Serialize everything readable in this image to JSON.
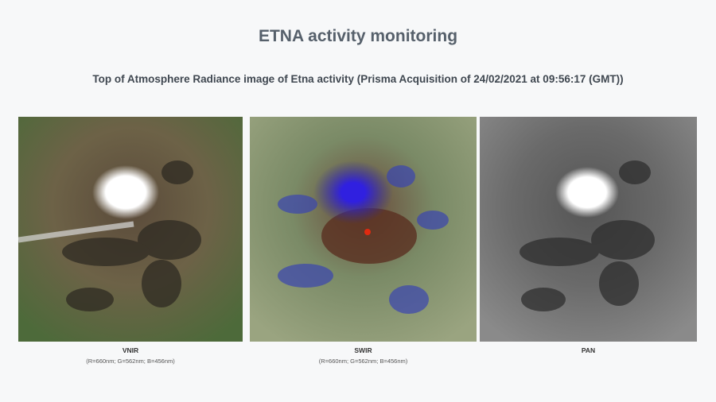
{
  "header": {
    "title": "ETNA activity monitoring",
    "subtitle": "Top of Atmosphere Radiance image of Etna activity (Prisma Acquisition of 24/02/2021 at 09:56:17 (GMT))"
  },
  "panels": [
    {
      "label": "VNIR",
      "caption": "(R=660nm; G=562nm; B=456nm)"
    },
    {
      "label": "SWIR",
      "caption": "(R=660nm; G=562nm; B=456nm)"
    },
    {
      "label": "PAN"
    }
  ]
}
